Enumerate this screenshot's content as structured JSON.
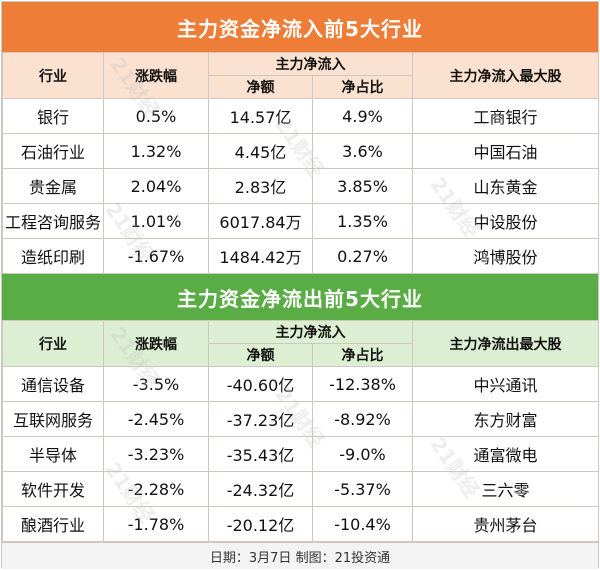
{
  "inflow": {
    "title": "主力资金净流入前5大行业",
    "headers": {
      "industry": "行业",
      "change": "涨跌幅",
      "main_net": "主力净流入",
      "net_amount": "净额",
      "net_ratio": "净占比",
      "top_stock": "主力净流入最大股"
    },
    "rows": [
      {
        "industry": "银行",
        "change": "0.5%",
        "amount": "14.57亿",
        "ratio": "4.9%",
        "stock": "工商银行"
      },
      {
        "industry": "石油行业",
        "change": "1.32%",
        "amount": "4.45亿",
        "ratio": "3.6%",
        "stock": "中国石油"
      },
      {
        "industry": "贵金属",
        "change": "2.04%",
        "amount": "2.83亿",
        "ratio": "3.85%",
        "stock": "山东黄金"
      },
      {
        "industry": "工程咨询服务",
        "change": "1.01%",
        "amount": "6017.84万",
        "ratio": "1.35%",
        "stock": "中设股份"
      },
      {
        "industry": "造纸印刷",
        "change": "-1.67%",
        "amount": "1484.42万",
        "ratio": "0.27%",
        "stock": "鸿博股份"
      }
    ]
  },
  "outflow": {
    "title": "主力资金净流出前5大行业",
    "headers": {
      "industry": "行业",
      "change": "涨跌幅",
      "main_net": "主力净流入",
      "net_amount": "净额",
      "net_ratio": "净占比",
      "top_stock": "主力净流出最大股"
    },
    "rows": [
      {
        "industry": "通信设备",
        "change": "-3.5%",
        "amount": "-40.60亿",
        "ratio": "-12.38%",
        "stock": "中兴通讯"
      },
      {
        "industry": "互联网服务",
        "change": "-2.45%",
        "amount": "-37.23亿",
        "ratio": "-8.92%",
        "stock": "东方财富"
      },
      {
        "industry": "半导体",
        "change": "-3.23%",
        "amount": "-35.43亿",
        "ratio": "-9.0%",
        "stock": "通富微电"
      },
      {
        "industry": "软件开发",
        "change": "-2.28%",
        "amount": "-24.32亿",
        "ratio": "-5.37%",
        "stock": "三六零"
      },
      {
        "industry": "酿酒行业",
        "change": "-1.78%",
        "amount": "-20.12亿",
        "ratio": "-10.4%",
        "stock": "贵州茅台"
      }
    ]
  },
  "footer": "日期：3月7日 制图：21投资通",
  "watermark": "21财经",
  "colors": {
    "inflow_accent": "#ee7d37",
    "outflow_accent": "#5aac45"
  }
}
